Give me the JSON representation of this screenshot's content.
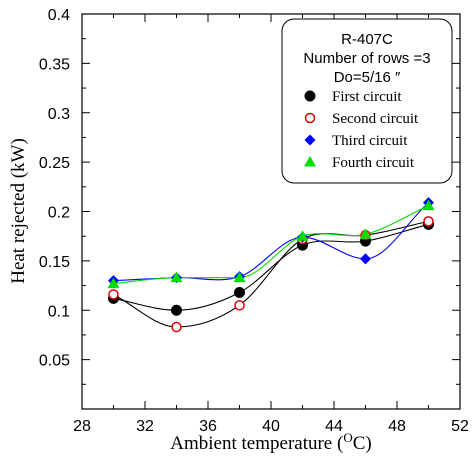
{
  "chart_data": {
    "type": "scatter",
    "title": "",
    "xlabel": "Ambient temperature (",
    "xlabel_sup": "O",
    "xlabel_unit": "C)",
    "ylabel": "Heat rejected (kW)",
    "xlim": [
      28,
      52
    ],
    "ylim": [
      0,
      0.4
    ],
    "x_ticks": [
      28,
      32,
      36,
      40,
      44,
      48,
      52
    ],
    "y_ticks": [
      0.05,
      0.1,
      0.15,
      0.2,
      0.25,
      0.3,
      0.35,
      0.4
    ],
    "x_tick_labels": [
      "28",
      "32",
      "36",
      "40",
      "44",
      "48",
      "52"
    ],
    "y_tick_labels": [
      "0.05",
      "0.1",
      "0.15",
      "0.2",
      "0.25",
      "0.3",
      "0.35",
      "0.4"
    ],
    "grid": false,
    "legend_position": "top-right",
    "legend_header": [
      "R-407C",
      "Number of rows =3",
      "Do=5/16 ″"
    ],
    "x": [
      30,
      34,
      38,
      42,
      46,
      50
    ],
    "series": [
      {
        "name": "First circuit",
        "marker": "filled-circle",
        "color": "#000000",
        "values": [
          0.112,
          0.1,
          0.118,
          0.166,
          0.17,
          0.187
        ]
      },
      {
        "name": "Second circuit",
        "marker": "open-circle",
        "color": "#e00000",
        "values": [
          0.116,
          0.083,
          0.105,
          0.172,
          0.176,
          0.19
        ]
      },
      {
        "name": "Third circuit",
        "marker": "diamond",
        "color": "#0000ff",
        "values": [
          0.13,
          0.133,
          0.134,
          0.174,
          0.152,
          0.209
        ]
      },
      {
        "name": "Fourth circuit",
        "marker": "triangle",
        "color": "#00dd00",
        "values": [
          0.127,
          0.133,
          0.133,
          0.175,
          0.177,
          0.206
        ]
      }
    ]
  }
}
